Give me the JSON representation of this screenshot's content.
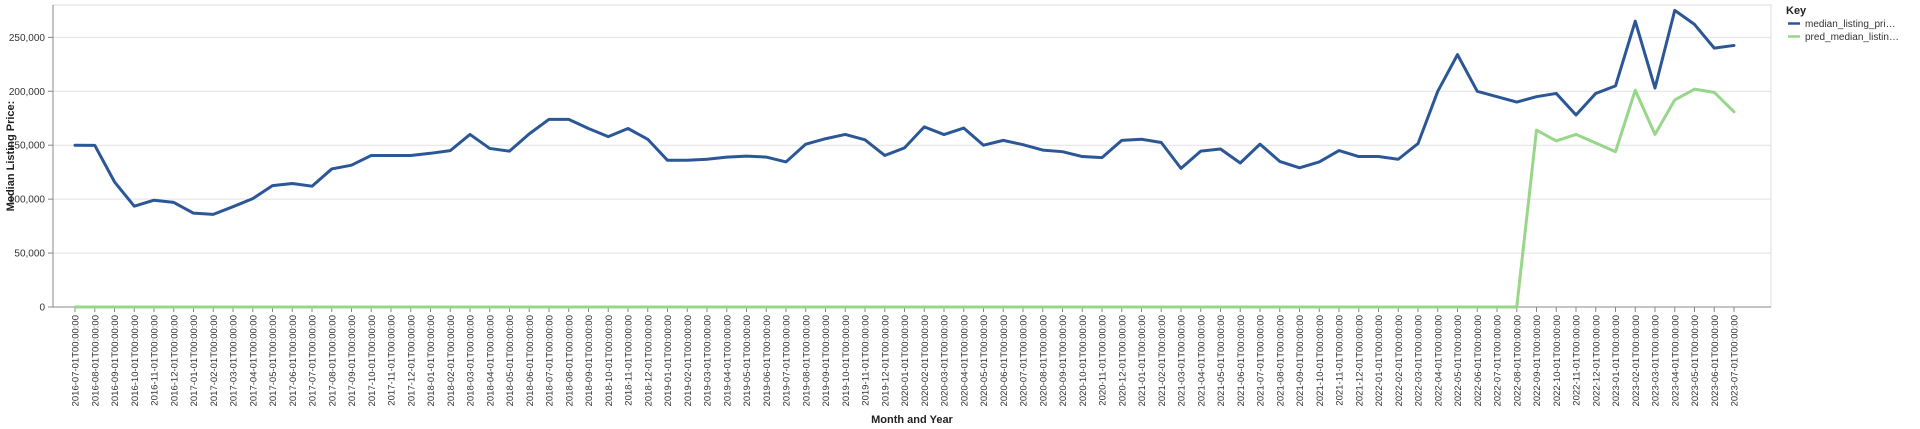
{
  "chart_data": {
    "type": "line",
    "xlabel": "Month and Year",
    "ylabel": "Median Listing Price:",
    "ylim": [
      0,
      280000
    ],
    "yticks": [
      0,
      50000,
      100000,
      150000,
      200000,
      250000
    ],
    "ytick_labels": [
      "0",
      "50,000",
      "100,000",
      "150,000",
      "200,000",
      "250,000"
    ],
    "grid": true,
    "legend": {
      "title": "Key",
      "position": "top-right"
    },
    "x": [
      "2016-07-01T00:00:00",
      "2016-08-01T00:00:00",
      "2016-09-01T00:00:00",
      "2016-10-01T00:00:00",
      "2016-11-01T00:00:00",
      "2016-12-01T00:00:00",
      "2017-01-01T00:00:00",
      "2017-02-01T00:00:00",
      "2017-03-01T00:00:00",
      "2017-04-01T00:00:00",
      "2017-05-01T00:00:00",
      "2017-06-01T00:00:00",
      "2017-07-01T00:00:00",
      "2017-08-01T00:00:00",
      "2017-09-01T00:00:00",
      "2017-10-01T00:00:00",
      "2017-11-01T00:00:00",
      "2017-12-01T00:00:00",
      "2018-01-01T00:00:00",
      "2018-02-01T00:00:00",
      "2018-03-01T00:00:00",
      "2018-04-01T00:00:00",
      "2018-05-01T00:00:00",
      "2018-06-01T00:00:00",
      "2018-07-01T00:00:00",
      "2018-08-01T00:00:00",
      "2018-09-01T00:00:00",
      "2018-10-01T00:00:00",
      "2018-11-01T00:00:00",
      "2018-12-01T00:00:00",
      "2019-01-01T00:00:00",
      "2019-02-01T00:00:00",
      "2019-03-01T00:00:00",
      "2019-04-01T00:00:00",
      "2019-05-01T00:00:00",
      "2019-06-01T00:00:00",
      "2019-07-01T00:00:00",
      "2019-08-01T00:00:00",
      "2019-09-01T00:00:00",
      "2019-10-01T00:00:00",
      "2019-11-01T00:00:00",
      "2019-12-01T00:00:00",
      "2020-01-01T00:00:00",
      "2020-02-01T00:00:00",
      "2020-03-01T00:00:00",
      "2020-04-01T00:00:00",
      "2020-05-01T00:00:00",
      "2020-06-01T00:00:00",
      "2020-07-01T00:00:00",
      "2020-08-01T00:00:00",
      "2020-09-01T00:00:00",
      "2020-10-01T00:00:00",
      "2020-11-01T00:00:00",
      "2020-12-01T00:00:00",
      "2021-01-01T00:00:00",
      "2021-02-01T00:00:00",
      "2021-03-01T00:00:00",
      "2021-04-01T00:00:00",
      "2021-05-01T00:00:00",
      "2021-06-01T00:00:00",
      "2021-07-01T00:00:00",
      "2021-08-01T00:00:00",
      "2021-09-01T00:00:00",
      "2021-10-01T00:00:00",
      "2021-11-01T00:00:00",
      "2021-12-01T00:00:00",
      "2022-01-01T00:00:00",
      "2022-02-01T00:00:00",
      "2022-03-01T00:00:00",
      "2022-04-01T00:00:00",
      "2022-05-01T00:00:00",
      "2022-06-01T00:00:00",
      "2022-07-01T00:00:00",
      "2022-08-01T00:00:00",
      "2022-09-01T00:00:00",
      "2022-10-01T00:00:00",
      "2022-11-01T00:00:00",
      "2022-12-01T00:00:00",
      "2023-01-01T00:00:00",
      "2023-02-01T00:00:00",
      "2023-03-01T00:00:00",
      "2023-04-01T00:00:00",
      "2023-05-01T00:00:00",
      "2023-06-01T00:00:00",
      "2023-07-01T00:00:00"
    ],
    "series": [
      {
        "name": "median_listing_pri…",
        "color": "#2b5797",
        "values": [
          150000,
          149900,
          116000,
          93500,
          99000,
          97000,
          87000,
          85900,
          93000,
          100500,
          112500,
          114500,
          112000,
          128000,
          131500,
          140500,
          140500,
          140500,
          142500,
          145000,
          160000,
          147000,
          144500,
          160500,
          174000,
          174000,
          165500,
          158000,
          165500,
          155500,
          136000,
          136000,
          137000,
          139000,
          139900,
          139000,
          134500,
          151000,
          156000,
          160000,
          155000,
          140500,
          147500,
          167000,
          159900,
          165900,
          150000,
          154500,
          150500,
          145500,
          144000,
          139500,
          138500,
          154500,
          155500,
          152500,
          128500,
          144500,
          146500,
          133500,
          151000,
          135000,
          129000,
          134500,
          145000,
          139500,
          139500,
          137000,
          151500,
          200000,
          234000,
          200000,
          195000,
          190000,
          195000,
          198000,
          178000,
          198000,
          205000,
          265000,
          203000,
          275000,
          262000,
          240000,
          242500
        ]
      },
      {
        "name": "pred_median_listin…",
        "color": "#98d68a",
        "values": [
          0,
          0,
          0,
          0,
          0,
          0,
          0,
          0,
          0,
          0,
          0,
          0,
          0,
          0,
          0,
          0,
          0,
          0,
          0,
          0,
          0,
          0,
          0,
          0,
          0,
          0,
          0,
          0,
          0,
          0,
          0,
          0,
          0,
          0,
          0,
          0,
          0,
          0,
          0,
          0,
          0,
          0,
          0,
          0,
          0,
          0,
          0,
          0,
          0,
          0,
          0,
          0,
          0,
          0,
          0,
          0,
          0,
          0,
          0,
          0,
          0,
          0,
          0,
          0,
          0,
          0,
          0,
          0,
          0,
          0,
          0,
          0,
          0,
          0,
          164000,
          154000,
          160000,
          152000,
          144000,
          201000,
          160000,
          192000,
          202000,
          199000,
          181000
        ]
      }
    ]
  }
}
